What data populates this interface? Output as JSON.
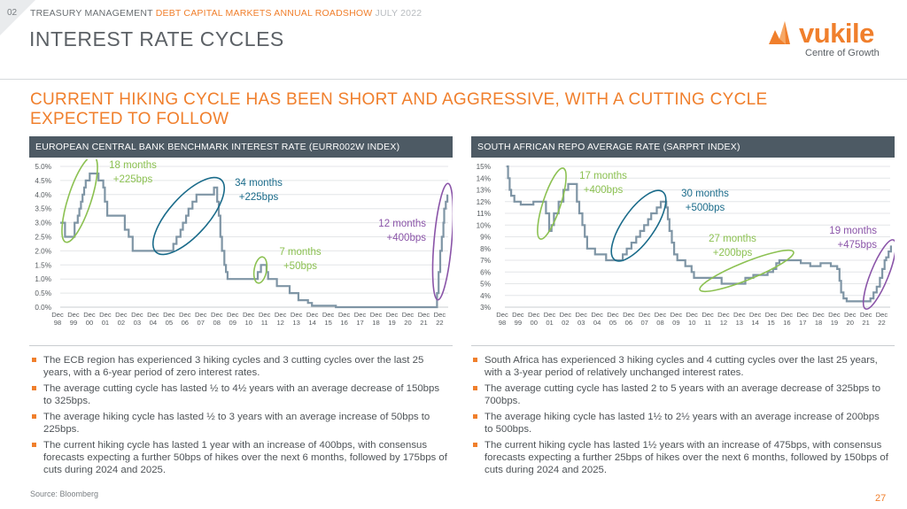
{
  "header": {
    "page_number": "02",
    "part1": "TREASURY MANAGEMENT",
    "part2": "DEBT CAPITAL MARKETS ANNUAL ROADSHOW",
    "part3": "JULY 2022",
    "title": "INTEREST RATE CYCLES"
  },
  "logo": {
    "word": "vukile",
    "tagline": "Centre of Growth"
  },
  "headline": "CURRENT HIKING CYCLE HAS BEEN SHORT AND AGGRESSIVE, WITH A CUTTING CYCLE EXPECTED TO FOLLOW",
  "colors": {
    "accent": "#f07f2c",
    "line": "#7f95a5",
    "blue": "#1a6b8a",
    "green": "#8cc152",
    "purple": "#8a54a8",
    "panel": "#4d5a64"
  },
  "chart_data": [
    {
      "type": "line",
      "title": "EUROPEAN CENTRAL BANK BENCHMARK INTEREST RATE (EURR002W INDEX)",
      "ylim": [
        0,
        5.0
      ],
      "y_ticks": [
        "0.0%",
        "0.5%",
        "1.0%",
        "1.5%",
        "2.0%",
        "2.5%",
        "3.0%",
        "3.5%",
        "4.0%",
        "4.5%",
        "5.0%"
      ],
      "x_ticks": [
        [
          "Dec",
          "98"
        ],
        [
          "Dec",
          "99"
        ],
        [
          "Dec",
          "00"
        ],
        [
          "Dec",
          "01"
        ],
        [
          "Dec",
          "02"
        ],
        [
          "Dec",
          "03"
        ],
        [
          "Dec",
          "04"
        ],
        [
          "Dec",
          "05"
        ],
        [
          "Dec",
          "06"
        ],
        [
          "Dec",
          "07"
        ],
        [
          "Dec",
          "08"
        ],
        [
          "Dec",
          "09"
        ],
        [
          "Dec",
          "10"
        ],
        [
          "Dec",
          "11"
        ],
        [
          "Dec",
          "12"
        ],
        [
          "Dec",
          "13"
        ],
        [
          "Dec",
          "14"
        ],
        [
          "Dec",
          "15"
        ],
        [
          "Dec",
          "16"
        ],
        [
          "Dec",
          "17"
        ],
        [
          "Dec",
          "18"
        ],
        [
          "Dec",
          "19"
        ],
        [
          "Dec",
          "20"
        ],
        [
          "Dec",
          "21"
        ],
        [
          "Dec",
          "22"
        ]
      ],
      "series": [
        {
          "points": [
            [
              1998.9,
              3.0
            ],
            [
              1999.1,
              3.0
            ],
            [
              1999.2,
              2.5
            ],
            [
              1999.7,
              2.5
            ],
            [
              1999.8,
              3.0
            ],
            [
              2000.0,
              3.25
            ],
            [
              2000.1,
              3.5
            ],
            [
              2000.2,
              3.75
            ],
            [
              2000.3,
              4.0
            ],
            [
              2000.4,
              4.25
            ],
            [
              2000.5,
              4.5
            ],
            [
              2000.75,
              4.75
            ],
            [
              2001.3,
              4.5
            ],
            [
              2001.6,
              4.25
            ],
            [
              2001.7,
              3.75
            ],
            [
              2001.85,
              3.25
            ],
            [
              2002.9,
              3.25
            ],
            [
              2002.95,
              2.75
            ],
            [
              2003.2,
              2.5
            ],
            [
              2003.45,
              2.0
            ],
            [
              2005.9,
              2.0
            ],
            [
              2006.0,
              2.25
            ],
            [
              2006.2,
              2.5
            ],
            [
              2006.45,
              2.75
            ],
            [
              2006.6,
              3.0
            ],
            [
              2006.8,
              3.25
            ],
            [
              2006.95,
              3.5
            ],
            [
              2007.2,
              3.75
            ],
            [
              2007.45,
              4.0
            ],
            [
              2008.5,
              4.0
            ],
            [
              2008.55,
              4.25
            ],
            [
              2008.75,
              3.75
            ],
            [
              2008.85,
              3.25
            ],
            [
              2008.95,
              2.5
            ],
            [
              2009.05,
              2.0
            ],
            [
              2009.2,
              1.5
            ],
            [
              2009.3,
              1.25
            ],
            [
              2009.4,
              1.0
            ],
            [
              2011.25,
              1.0
            ],
            [
              2011.3,
              1.25
            ],
            [
              2011.5,
              1.5
            ],
            [
              2011.85,
              1.25
            ],
            [
              2011.95,
              1.0
            ],
            [
              2012.5,
              0.75
            ],
            [
              2013.3,
              0.5
            ],
            [
              2013.85,
              0.25
            ],
            [
              2014.45,
              0.15
            ],
            [
              2014.7,
              0.05
            ],
            [
              2016.2,
              0.0
            ],
            [
              2022.5,
              0.0
            ],
            [
              2022.55,
              0.5
            ],
            [
              2022.65,
              1.25
            ],
            [
              2022.75,
              2.0
            ],
            [
              2022.85,
              2.5
            ],
            [
              2022.95,
              3.0
            ],
            [
              2023.0,
              3.5
            ],
            [
              2023.1,
              3.75
            ],
            [
              2023.2,
              4.0
            ]
          ]
        }
      ],
      "annotations": [
        {
          "line1": "18 months",
          "line2": "+225bps",
          "color": "green"
        },
        {
          "line1": "34 months",
          "line2": "+225bps",
          "color": "blue"
        },
        {
          "line1": "7 months",
          "line2": "+50bps",
          "color": "green"
        },
        {
          "line1": "12 months",
          "line2": "+400bps",
          "color": "purple"
        }
      ]
    },
    {
      "type": "line",
      "title": "SOUTH AFRICAN REPO AVERAGE RATE (SARPRT INDEX)",
      "ylim": [
        3,
        15
      ],
      "y_ticks": [
        "3%",
        "4%",
        "5%",
        "6%",
        "7%",
        "8%",
        "9%",
        "10%",
        "11%",
        "12%",
        "13%",
        "14%",
        "15%"
      ],
      "x_ticks": [
        [
          "Dec",
          "98"
        ],
        [
          "Dec",
          "99"
        ],
        [
          "Dec",
          "00"
        ],
        [
          "Dec",
          "01"
        ],
        [
          "Dec",
          "02"
        ],
        [
          "Dec",
          "03"
        ],
        [
          "Dec",
          "04"
        ],
        [
          "Dec",
          "05"
        ],
        [
          "Dec",
          "06"
        ],
        [
          "Dec",
          "07"
        ],
        [
          "Dec",
          "08"
        ],
        [
          "Dec",
          "09"
        ],
        [
          "Dec",
          "10"
        ],
        [
          "Dec",
          "11"
        ],
        [
          "Dec",
          "12"
        ],
        [
          "Dec",
          "13"
        ],
        [
          "Dec",
          "14"
        ],
        [
          "Dec",
          "15"
        ],
        [
          "Dec",
          "16"
        ],
        [
          "Dec",
          "17"
        ],
        [
          "Dec",
          "18"
        ],
        [
          "Dec",
          "19"
        ],
        [
          "Dec",
          "20"
        ],
        [
          "Dec",
          "21"
        ],
        [
          "Dec",
          "22"
        ]
      ],
      "series": [
        {
          "points": [
            [
              1999.0,
              15.0
            ],
            [
              1999.1,
              14.0
            ],
            [
              1999.2,
              13.0
            ],
            [
              1999.3,
              12.5
            ],
            [
              1999.5,
              12.0
            ],
            [
              1999.9,
              11.75
            ],
            [
              2000.6,
              11.75
            ],
            [
              2000.7,
              12.0
            ],
            [
              2001.3,
              12.0
            ],
            [
              2001.5,
              11.0
            ],
            [
              2001.7,
              9.5
            ],
            [
              2001.85,
              10.0
            ],
            [
              2002.0,
              11.0
            ],
            [
              2002.3,
              12.0
            ],
            [
              2002.6,
              13.0
            ],
            [
              2002.9,
              13.5
            ],
            [
              2003.3,
              13.5
            ],
            [
              2003.45,
              12.0
            ],
            [
              2003.6,
              11.0
            ],
            [
              2003.8,
              10.0
            ],
            [
              2003.95,
              9.0
            ],
            [
              2004.1,
              8.0
            ],
            [
              2004.6,
              7.5
            ],
            [
              2005.3,
              7.0
            ],
            [
              2006.2,
              7.0
            ],
            [
              2006.35,
              7.5
            ],
            [
              2006.6,
              8.0
            ],
            [
              2006.9,
              8.5
            ],
            [
              2007.2,
              9.0
            ],
            [
              2007.45,
              9.5
            ],
            [
              2007.7,
              10.0
            ],
            [
              2007.95,
              10.5
            ],
            [
              2008.15,
              11.0
            ],
            [
              2008.5,
              11.5
            ],
            [
              2008.75,
              12.0
            ],
            [
              2009.0,
              12.0
            ],
            [
              2009.1,
              11.5
            ],
            [
              2009.2,
              10.5
            ],
            [
              2009.3,
              9.5
            ],
            [
              2009.45,
              8.5
            ],
            [
              2009.6,
              7.5
            ],
            [
              2009.8,
              7.0
            ],
            [
              2010.3,
              6.5
            ],
            [
              2010.7,
              6.0
            ],
            [
              2010.85,
              5.5
            ],
            [
              2012.5,
              5.5
            ],
            [
              2012.6,
              5.0
            ],
            [
              2014.0,
              5.0
            ],
            [
              2014.1,
              5.5
            ],
            [
              2014.6,
              5.75
            ],
            [
              2015.5,
              6.0
            ],
            [
              2015.85,
              6.25
            ],
            [
              2016.05,
              6.75
            ],
            [
              2016.25,
              7.0
            ],
            [
              2017.5,
              7.0
            ],
            [
              2017.6,
              6.75
            ],
            [
              2018.2,
              6.5
            ],
            [
              2018.85,
              6.75
            ],
            [
              2019.5,
              6.5
            ],
            [
              2019.9,
              6.25
            ],
            [
              2020.05,
              5.25
            ],
            [
              2020.15,
              4.25
            ],
            [
              2020.3,
              3.75
            ],
            [
              2020.5,
              3.5
            ],
            [
              2021.9,
              3.5
            ],
            [
              2022.0,
              3.75
            ],
            [
              2022.2,
              4.25
            ],
            [
              2022.4,
              4.75
            ],
            [
              2022.6,
              5.5
            ],
            [
              2022.75,
              6.25
            ],
            [
              2022.9,
              7.0
            ],
            [
              2023.0,
              7.25
            ],
            [
              2023.15,
              7.75
            ],
            [
              2023.3,
              8.25
            ]
          ]
        }
      ],
      "annotations": [
        {
          "line1": "17 months",
          "line2": "+400bps",
          "color": "green"
        },
        {
          "line1": "30 months",
          "line2": "+500bps",
          "color": "blue"
        },
        {
          "line1": "27 months",
          "line2": "+200bps",
          "color": "green"
        },
        {
          "line1": "19 months",
          "line2": "+475bps",
          "color": "purple"
        }
      ]
    }
  ],
  "bullets_left": [
    "The ECB region has experienced 3 hiking cycles and 3 cutting cycles over the last 25 years, with a 6-year period of zero interest rates.",
    "The average cutting cycle has lasted ½ to 4½ years with an average decrease of 150bps to 325bps.",
    "The average hiking cycle has lasted ½ to 3 years with an average increase of 50bps to 225bps.",
    "The current hiking cycle has lasted 1 year with an increase of 400bps, with consensus forecasts expecting a further 50bps of hikes over the next 6 months, followed by 175bps of cuts during 2024 and 2025."
  ],
  "bullets_right": [
    "South Africa has experienced 3 hiking cycles and 4 cutting cycles over the last 25 years, with a 3-year period of relatively unchanged interest rates.",
    "The average cutting cycle has lasted 2 to 5 years with an average decrease of 325bps to 700bps.",
    "The average hiking cycle has lasted 1½ to 2½  years with an average increase of 200bps to 500bps.",
    "The current hiking cycle has lasted 1½ years with an increase of 475bps, with consensus forecasts expecting a further 25bps of hikes over the next 6 months, followed by 150bps of cuts during 2024 and 2025."
  ],
  "footer": {
    "source": "Source: Bloomberg",
    "page": "27"
  }
}
